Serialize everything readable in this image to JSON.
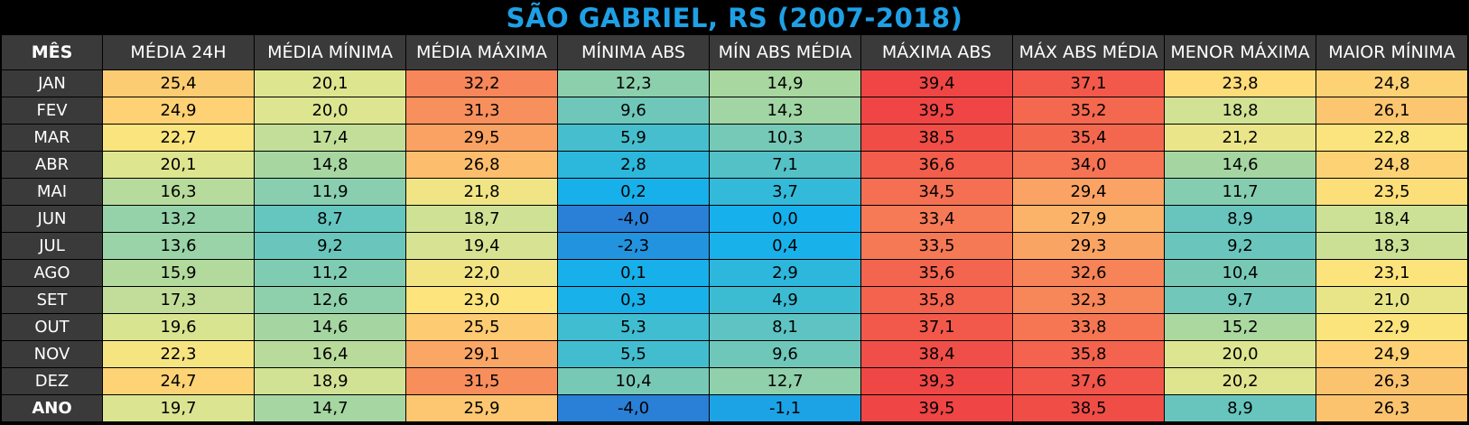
{
  "chart_data": {
    "type": "table",
    "title": "SÃO GABRIEL, RS (2007-2018)",
    "row_header_label": "MÊS",
    "columns": [
      "MÉDIA 24H",
      "MÉDIA MÍNIMA",
      "MÉDIA MÁXIMA",
      "MÍNIMA ABS",
      "MÍN ABS MÉDIA",
      "MÁXIMA ABS",
      "MÁX ABS MÉDIA",
      "MENOR MÁXIMA",
      "MAIOR MÍNIMA"
    ],
    "rows": [
      {
        "label": "JAN",
        "values": [
          "25,4",
          "20,1",
          "32,2",
          "12,3",
          "14,9",
          "39,4",
          "37,1",
          "23,8",
          "24,8"
        ]
      },
      {
        "label": "FEV",
        "values": [
          "24,9",
          "20,0",
          "31,3",
          "9,6",
          "14,3",
          "39,5",
          "35,2",
          "18,8",
          "26,1"
        ]
      },
      {
        "label": "MAR",
        "values": [
          "22,7",
          "17,4",
          "29,5",
          "5,9",
          "10,3",
          "38,5",
          "35,4",
          "21,2",
          "22,8"
        ]
      },
      {
        "label": "ABR",
        "values": [
          "20,1",
          "14,8",
          "26,8",
          "2,8",
          "7,1",
          "36,6",
          "34,0",
          "14,6",
          "24,8"
        ]
      },
      {
        "label": "MAI",
        "values": [
          "16,3",
          "11,9",
          "21,8",
          "0,2",
          "3,7",
          "34,5",
          "29,4",
          "11,7",
          "23,5"
        ]
      },
      {
        "label": "JUN",
        "values": [
          "13,2",
          "8,7",
          "18,7",
          "-4,0",
          "0,0",
          "33,4",
          "27,9",
          "8,9",
          "18,4"
        ]
      },
      {
        "label": "JUL",
        "values": [
          "13,6",
          "9,2",
          "19,4",
          "-2,3",
          "0,4",
          "33,5",
          "29,3",
          "9,2",
          "18,3"
        ]
      },
      {
        "label": "AGO",
        "values": [
          "15,9",
          "11,2",
          "22,0",
          "0,1",
          "2,9",
          "35,6",
          "32,6",
          "10,4",
          "23,1"
        ]
      },
      {
        "label": "SET",
        "values": [
          "17,3",
          "12,6",
          "23,0",
          "0,3",
          "4,9",
          "35,8",
          "32,3",
          "9,7",
          "21,0"
        ]
      },
      {
        "label": "OUT",
        "values": [
          "19,6",
          "14,6",
          "25,5",
          "5,3",
          "8,1",
          "37,1",
          "33,8",
          "15,2",
          "22,9"
        ]
      },
      {
        "label": "NOV",
        "values": [
          "22,3",
          "16,4",
          "29,1",
          "5,5",
          "9,6",
          "38,4",
          "35,8",
          "20,0",
          "24,9"
        ]
      },
      {
        "label": "DEZ",
        "values": [
          "24,7",
          "18,9",
          "31,5",
          "10,4",
          "12,7",
          "39,3",
          "37,6",
          "20,2",
          "26,3"
        ]
      },
      {
        "label": "ANO",
        "values": [
          "19,7",
          "14,7",
          "25,9",
          "-4,0",
          "-1,1",
          "39,5",
          "38,5",
          "8,9",
          "26,3"
        ]
      }
    ],
    "color_scale": {
      "stops": [
        {
          "value": -4,
          "color": "#2a7fd6"
        },
        {
          "value": 0,
          "color": "#16b0ec"
        },
        {
          "value": 5,
          "color": "#3dbcd2"
        },
        {
          "value": 10,
          "color": "#73c8b8"
        },
        {
          "value": 15,
          "color": "#a9d7a0"
        },
        {
          "value": 20,
          "color": "#dde590"
        },
        {
          "value": 23,
          "color": "#fde47c"
        },
        {
          "value": 27,
          "color": "#fcbc6c"
        },
        {
          "value": 31,
          "color": "#f8935e"
        },
        {
          "value": 35,
          "color": "#f56a50"
        },
        {
          "value": 39.5,
          "color": "#ef4545"
        }
      ]
    }
  }
}
